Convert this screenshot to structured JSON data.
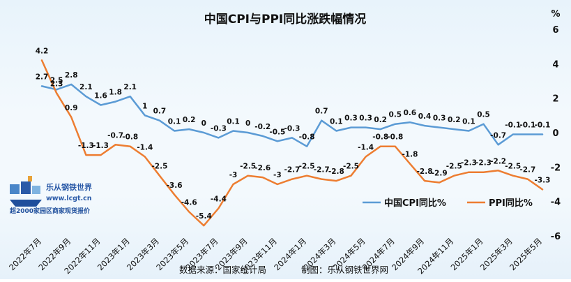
{
  "chart_data": {
    "type": "line",
    "title": "中国CPI与PPI同比涨跌幅情况",
    "y_unit": "%",
    "ylim": [
      -6,
      6
    ],
    "yticks": [
      6,
      4,
      2,
      0,
      -2,
      -4,
      -6
    ],
    "grid": false,
    "legend_position": "lower-right",
    "categories": [
      "2022年7月",
      "2022年8月",
      "2022年9月",
      "2022年10月",
      "2022年11月",
      "2022年12月",
      "2023年1月",
      "2023年2月",
      "2023年3月",
      "2023年4月",
      "2023年5月",
      "2023年6月",
      "2023年7月",
      "2023年8月",
      "2023年9月",
      "2023年10月",
      "2023年11月",
      "2023年12月",
      "2024年1月",
      "2024年2月",
      "2024年3月",
      "2024年4月",
      "2024年5月",
      "2024年6月",
      "2024年7月",
      "2024年8月",
      "2024年9月",
      "2024年10月",
      "2024年11月",
      "2024年12月",
      "2025年1月",
      "2025年2月",
      "2025年3月",
      "2025年4月",
      "2025年5月"
    ],
    "x_tick_labels": [
      "2022年7月",
      "2022年9月",
      "2022年11月",
      "2023年1月",
      "2023年3月",
      "2023年5月",
      "2023年7月",
      "2023年9月",
      "2023年11月",
      "2024年1月",
      "2024年3月",
      "2024年5月",
      "2024年7月",
      "2024年9月",
      "2024年11月",
      "2025年1月",
      "2025年3月",
      "2025年5月"
    ],
    "series": [
      {
        "name": "中国CPI同比%",
        "color": "#5b9bd5",
        "values": [
          2.7,
          2.5,
          2.8,
          2.1,
          1.6,
          1.8,
          2.1,
          1.0,
          0.7,
          0.1,
          0.2,
          0.0,
          -0.3,
          0.1,
          0.0,
          -0.2,
          -0.5,
          -0.3,
          -0.8,
          0.7,
          0.1,
          0.3,
          0.3,
          0.2,
          0.5,
          0.6,
          0.4,
          0.3,
          0.2,
          0.1,
          0.5,
          -0.7,
          -0.1,
          -0.1,
          -0.1
        ]
      },
      {
        "name": "PPI同比%",
        "color": "#ed7d31",
        "values": [
          4.2,
          2.3,
          0.9,
          -1.3,
          -1.3,
          -0.7,
          -0.8,
          -1.4,
          -2.5,
          -3.6,
          -4.6,
          -5.4,
          -4.4,
          -3.0,
          -2.5,
          -2.6,
          -3.0,
          -2.7,
          -2.5,
          -2.7,
          -2.8,
          -2.5,
          -1.4,
          -0.8,
          -0.8,
          -1.8,
          -2.8,
          -2.9,
          -2.5,
          -2.3,
          -2.3,
          -2.2,
          -2.5,
          -2.7,
          -3.3
        ]
      }
    ]
  },
  "footer": {
    "source": "数据来源：国家统计局",
    "credit": "制图：乐从钢铁世界网"
  },
  "logo": {
    "name": "乐从钢铁世界",
    "url": "www.lcgt.cn",
    "tagline": "超2000家园区商家现货报价"
  }
}
